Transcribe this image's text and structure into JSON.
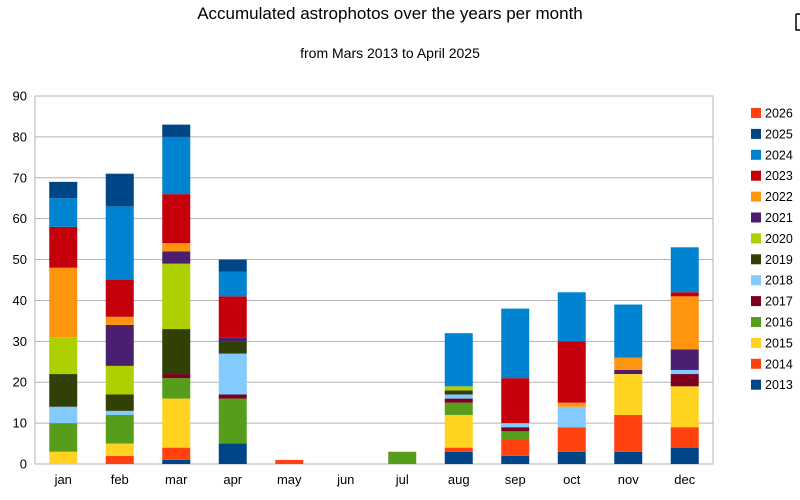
{
  "chart_data": {
    "type": "bar",
    "stacked": true,
    "title": "Accumulated astrophotos over the years per month",
    "subtitle": "from Mars 2013 to April 2025",
    "xlabel": "",
    "ylabel": "",
    "ylim": [
      0,
      90
    ],
    "yticks": [
      0,
      10,
      20,
      30,
      40,
      50,
      60,
      70,
      80,
      90
    ],
    "grid": true,
    "legend_position": "right",
    "categories": [
      "jan",
      "feb",
      "mar",
      "apr",
      "may",
      "jun",
      "jul",
      "aug",
      "sep",
      "oct",
      "nov",
      "dec"
    ],
    "series": [
      {
        "name": "2013",
        "color": "#004586",
        "values": [
          0,
          0,
          1,
          5,
          0,
          0,
          0,
          3,
          2,
          3,
          3,
          4
        ]
      },
      {
        "name": "2014",
        "color": "#ff420e",
        "values": [
          0,
          2,
          3,
          0,
          1,
          0,
          0,
          1,
          4,
          6,
          9,
          5
        ]
      },
      {
        "name": "2015",
        "color": "#ffd320",
        "values": [
          3,
          3,
          12,
          0,
          0,
          0,
          0,
          8,
          0,
          0,
          10,
          10
        ]
      },
      {
        "name": "2016",
        "color": "#579d1c",
        "values": [
          7,
          7,
          5,
          11,
          0,
          0,
          3,
          3,
          2,
          0,
          0,
          0
        ]
      },
      {
        "name": "2017",
        "color": "#7e0021",
        "values": [
          0,
          0,
          1,
          1,
          0,
          0,
          0,
          1,
          1,
          0,
          0,
          3
        ]
      },
      {
        "name": "2018",
        "color": "#83caff",
        "values": [
          4,
          1,
          0,
          10,
          0,
          0,
          0,
          1,
          1,
          5,
          0,
          1
        ]
      },
      {
        "name": "2019",
        "color": "#314004",
        "values": [
          8,
          4,
          11,
          3,
          0,
          0,
          0,
          1,
          0,
          0,
          0,
          0
        ]
      },
      {
        "name": "2020",
        "color": "#aecf00",
        "values": [
          9,
          7,
          16,
          0,
          0,
          0,
          0,
          1,
          0,
          0,
          0,
          0
        ]
      },
      {
        "name": "2021",
        "color": "#4b1f6f",
        "values": [
          0,
          10,
          3,
          1,
          0,
          0,
          0,
          0,
          0,
          0,
          1,
          5
        ]
      },
      {
        "name": "2022",
        "color": "#ff950e",
        "values": [
          17,
          2,
          2,
          0,
          0,
          0,
          0,
          0,
          0,
          1,
          3,
          13
        ]
      },
      {
        "name": "2023",
        "color": "#c5000b",
        "values": [
          10,
          9,
          12,
          10,
          0,
          0,
          0,
          0,
          11,
          15,
          0,
          1
        ]
      },
      {
        "name": "2024",
        "color": "#0084d1",
        "values": [
          7,
          18,
          14,
          6,
          0,
          0,
          0,
          13,
          17,
          12,
          13,
          11
        ]
      },
      {
        "name": "2025",
        "color": "#004586",
        "values": [
          4,
          8,
          3,
          3,
          0,
          0,
          0,
          0,
          0,
          0,
          0,
          0
        ]
      },
      {
        "name": "2026",
        "color": "#ff420e",
        "values": [
          0,
          0,
          0,
          0,
          0,
          0,
          0,
          0,
          0,
          0,
          0,
          0
        ]
      }
    ]
  }
}
